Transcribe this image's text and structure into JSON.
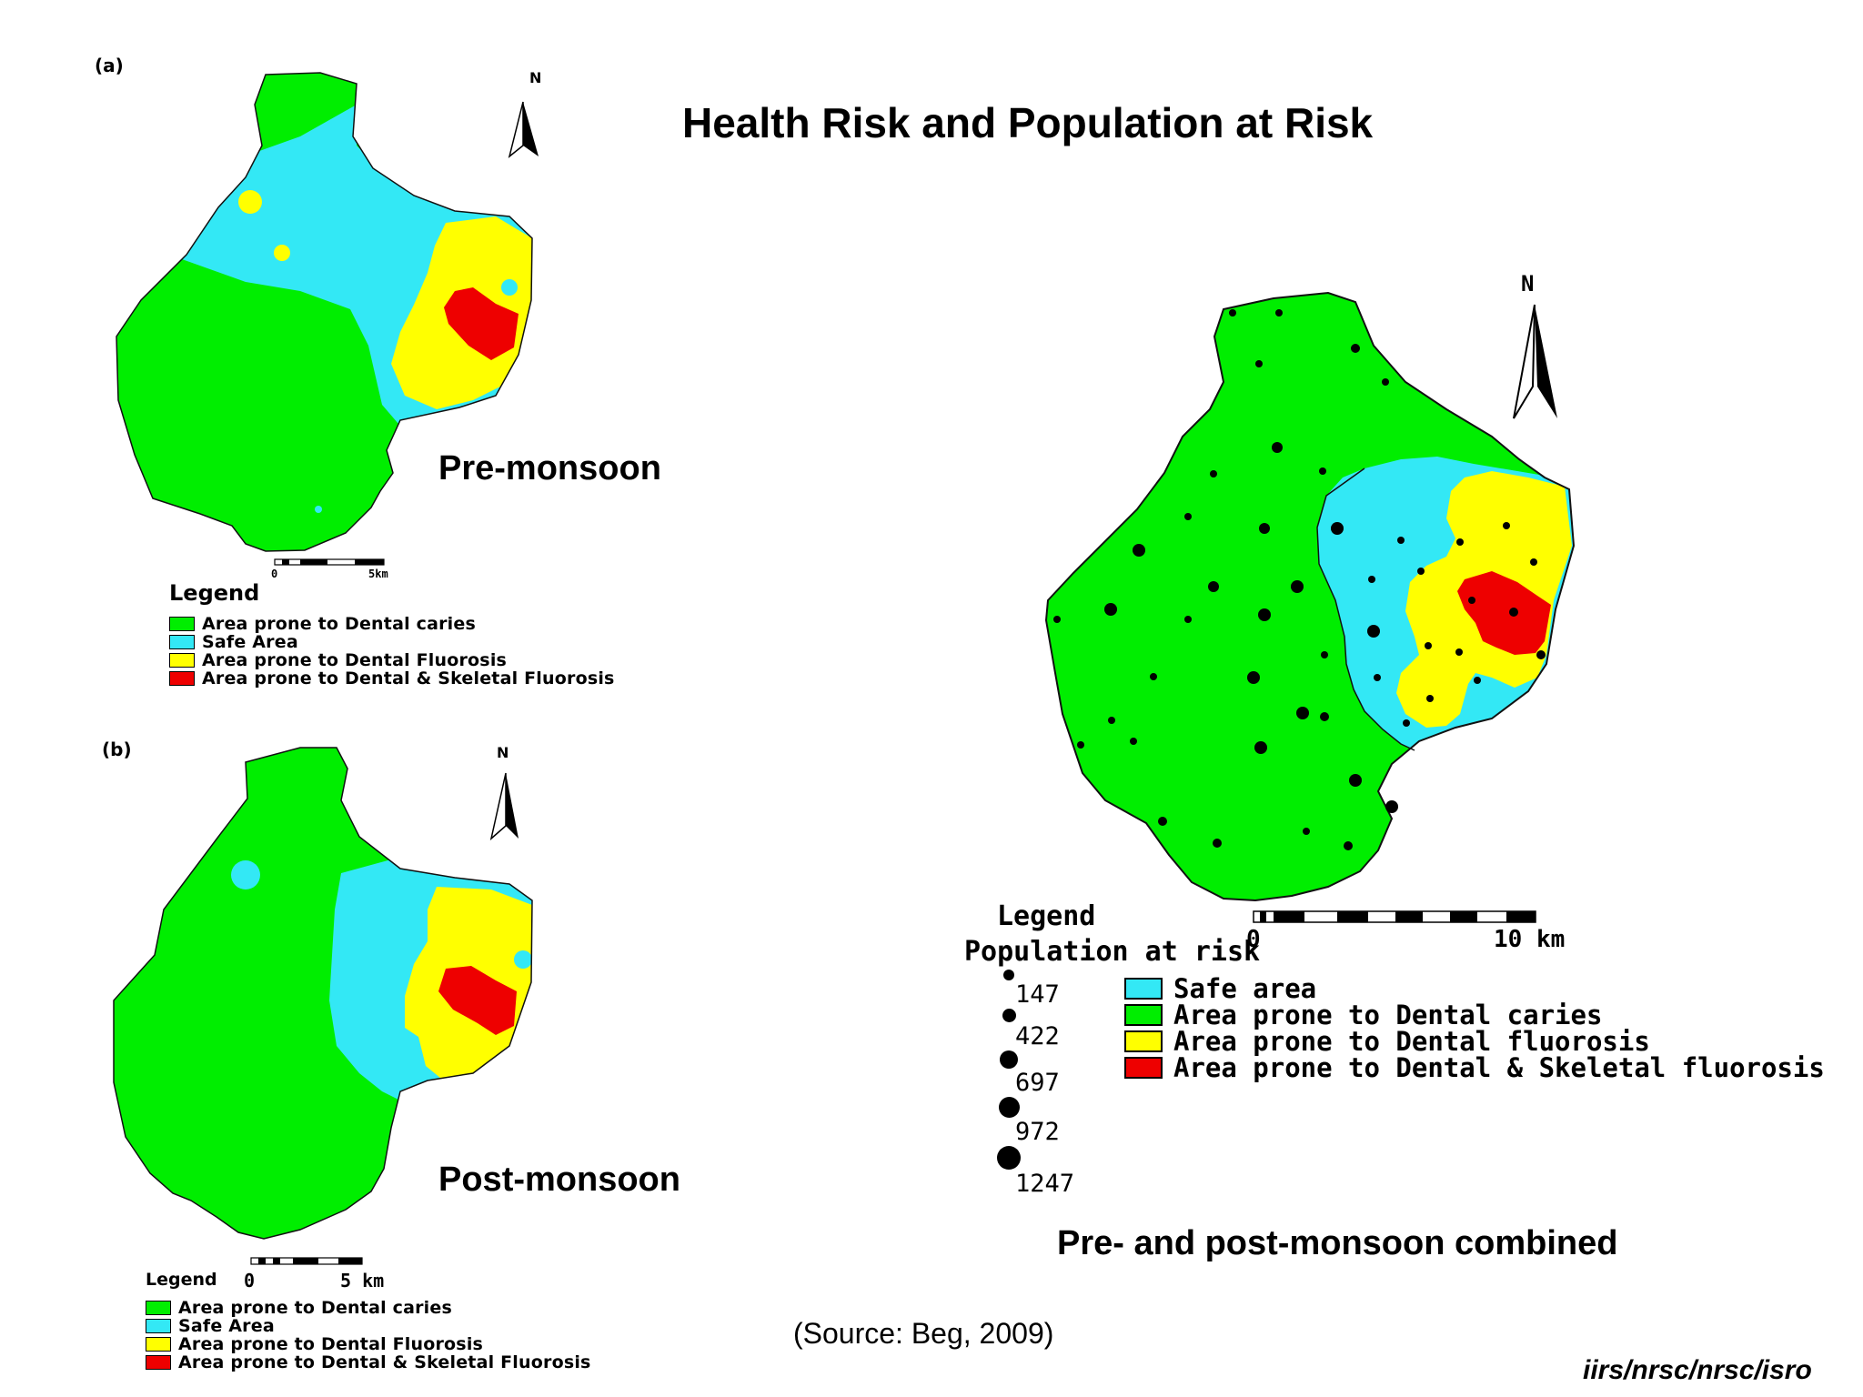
{
  "title": "Health Risk and Population at Risk",
  "colors": {
    "dental_caries": "#00ee00",
    "safe": "#33e8f5",
    "dental_fluorosis": "#ffff00",
    "skeletal_fluorosis": "#ee0000",
    "population_dot": "#000000"
  },
  "map_a": {
    "panel_label": "(a)",
    "north": "N",
    "caption": "Pre-monsoon",
    "scale": {
      "start": "0",
      "end": "5km"
    },
    "legend": {
      "title": "Legend",
      "items": [
        {
          "label": "Area prone to Dental caries",
          "color": "#00ee00"
        },
        {
          "label": "Safe Area",
          "color": "#33e8f5"
        },
        {
          "label": "Area prone to Dental Fluorosis",
          "color": "#ffff00"
        },
        {
          "label": "Area prone to Dental & Skeletal Fluorosis",
          "color": "#ee0000"
        }
      ]
    }
  },
  "map_b": {
    "panel_label": "(b)",
    "north": "N",
    "caption": "Post-monsoon",
    "scale": {
      "start": "0",
      "end": "5 km"
    },
    "legend": {
      "title": "Legend",
      "items": [
        {
          "label": "Area prone to Dental caries",
          "color": "#00ee00"
        },
        {
          "label": "Safe Area",
          "color": "#33e8f5"
        },
        {
          "label": "Area prone to Dental Fluorosis",
          "color": "#ffff00"
        },
        {
          "label": "Area prone to Dental & Skeletal Fluorosis",
          "color": "#ee0000"
        }
      ]
    }
  },
  "map_combined": {
    "north": "N",
    "caption": "Pre- and post-monsoon combined",
    "scale": {
      "start": "0",
      "end": "10 km"
    },
    "legend": {
      "title": "Legend",
      "subtitle": "Population at risk",
      "population": [
        "147",
        "422",
        "697",
        "972",
        "1247"
      ],
      "items": [
        {
          "label": "Safe area",
          "color": "#33e8f5"
        },
        {
          "label": "Area prone to Dental caries",
          "color": "#00ee00"
        },
        {
          "label": "Area prone to Dental fluorosis",
          "color": "#ffff00"
        },
        {
          "label": "Area prone to Dental & Skeletal fluorosis",
          "color": "#ee0000"
        }
      ]
    }
  },
  "source": "(Source: Beg, 2009)",
  "credit": "iirs/nrsc/nrsc/isro"
}
